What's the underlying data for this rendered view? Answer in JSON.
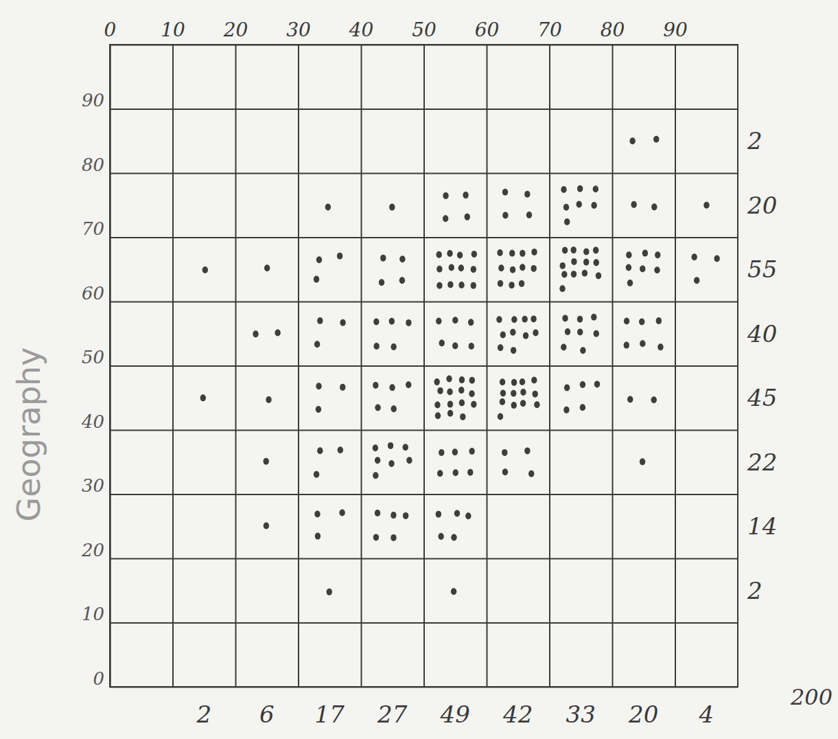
{
  "chart_data": {
    "type": "correlation",
    "y_label": "Geography",
    "xlim": [
      0,
      100
    ],
    "ylim": [
      0,
      100
    ],
    "xticks": [
      0,
      10,
      20,
      30,
      40,
      50,
      60,
      70,
      80,
      90
    ],
    "yticks": [
      0,
      10,
      20,
      30,
      40,
      50,
      60,
      70,
      80,
      90
    ],
    "xbins": [
      0,
      10,
      20,
      30,
      40,
      50,
      60,
      70,
      80,
      90,
      100
    ],
    "ybins": [
      0,
      10,
      20,
      30,
      40,
      50,
      60,
      70,
      80,
      90,
      100
    ],
    "counts": [
      [
        0,
        0,
        0,
        0,
        0,
        0,
        0,
        0,
        0,
        0
      ],
      [
        0,
        0,
        0,
        1,
        0,
        1,
        0,
        0,
        0,
        0
      ],
      [
        0,
        0,
        1,
        3,
        5,
        5,
        0,
        0,
        0,
        0
      ],
      [
        0,
        0,
        1,
        3,
        7,
        6,
        4,
        0,
        1,
        0
      ],
      [
        0,
        1,
        1,
        3,
        5,
        15,
        13,
        5,
        2,
        0
      ],
      [
        0,
        0,
        2,
        3,
        5,
        6,
        10,
        8,
        6,
        0
      ],
      [
        0,
        1,
        1,
        3,
        4,
        12,
        11,
        13,
        7,
        3
      ],
      [
        0,
        0,
        0,
        1,
        1,
        4,
        4,
        7,
        2,
        1
      ],
      [
        0,
        0,
        0,
        0,
        0,
        0,
        0,
        0,
        2,
        0
      ],
      [
        0,
        0,
        0,
        0,
        0,
        0,
        0,
        0,
        0,
        0
      ]
    ],
    "row_totals": [
      null,
      2,
      14,
      22,
      45,
      40,
      55,
      20,
      2,
      null
    ],
    "column_totals": [
      null,
      2,
      6,
      17,
      27,
      49,
      42,
      33,
      20,
      4
    ],
    "total": 200,
    "color": "#3e3e3e",
    "grid": true
  }
}
